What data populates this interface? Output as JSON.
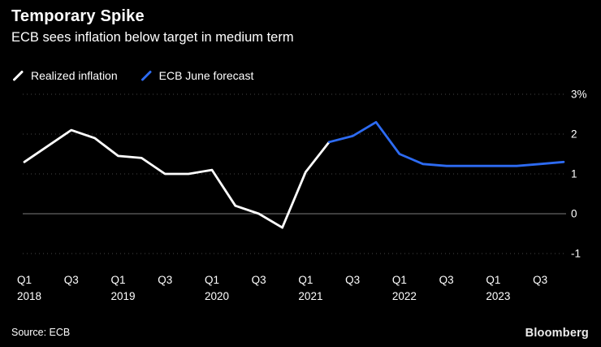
{
  "header": {
    "title": "Temporary Spike",
    "subtitle": "ECB sees inflation below target in medium term"
  },
  "legend": [
    {
      "label": "Realized inflation",
      "color": "#ffffff"
    },
    {
      "label": "ECB June forecast",
      "color": "#2d6bf2"
    }
  ],
  "footer": {
    "source": "Source: ECB",
    "brand": "Bloomberg"
  },
  "chart_data": {
    "type": "line",
    "title": "Temporary Spike",
    "subtitle": "ECB sees inflation below target in medium term",
    "ylabel": "%",
    "ylim": [
      -1,
      3
    ],
    "grid": true,
    "legend_position": "top-left",
    "x": [
      "2018Q1",
      "2018Q2",
      "2018Q3",
      "2018Q4",
      "2019Q1",
      "2019Q2",
      "2019Q3",
      "2019Q4",
      "2020Q1",
      "2020Q2",
      "2020Q3",
      "2020Q4",
      "2021Q1",
      "2021Q2",
      "2021Q3",
      "2021Q4",
      "2022Q1",
      "2022Q2",
      "2022Q3",
      "2022Q4",
      "2023Q1",
      "2023Q2",
      "2023Q3",
      "2023Q4"
    ],
    "yticks": [
      {
        "value": 3,
        "label": "3%"
      },
      {
        "value": 2,
        "label": "2"
      },
      {
        "value": 1,
        "label": "1"
      },
      {
        "value": 0,
        "label": "0"
      },
      {
        "value": -1,
        "label": "-1"
      }
    ],
    "x_ticks": [
      {
        "index": 0,
        "label": "Q1",
        "year": "2018"
      },
      {
        "index": 2,
        "label": "Q3"
      },
      {
        "index": 4,
        "label": "Q1",
        "year": "2019"
      },
      {
        "index": 6,
        "label": "Q3"
      },
      {
        "index": 8,
        "label": "Q1",
        "year": "2020"
      },
      {
        "index": 10,
        "label": "Q3"
      },
      {
        "index": 12,
        "label": "Q1",
        "year": "2021"
      },
      {
        "index": 14,
        "label": "Q3"
      },
      {
        "index": 16,
        "label": "Q1",
        "year": "2022"
      },
      {
        "index": 18,
        "label": "Q3"
      },
      {
        "index": 20,
        "label": "Q1",
        "year": "2023"
      },
      {
        "index": 22,
        "label": "Q3"
      }
    ],
    "series": [
      {
        "id": "realized-inflation",
        "name": "Realized inflation",
        "color": "#ffffff",
        "values": [
          1.3,
          1.7,
          2.1,
          1.9,
          1.45,
          1.4,
          1.0,
          1.0,
          1.1,
          0.2,
          0.0,
          -0.35,
          1.05,
          1.8,
          null,
          null,
          null,
          null,
          null,
          null,
          null,
          null,
          null,
          null
        ]
      },
      {
        "id": "ecb-june-forecast",
        "name": "ECB June forecast",
        "color": "#2d6bf2",
        "values": [
          null,
          null,
          null,
          null,
          null,
          null,
          null,
          null,
          null,
          null,
          null,
          null,
          null,
          1.8,
          1.95,
          2.3,
          1.5,
          1.25,
          1.2,
          1.2,
          1.2,
          1.2,
          1.25,
          1.3
        ]
      }
    ]
  }
}
